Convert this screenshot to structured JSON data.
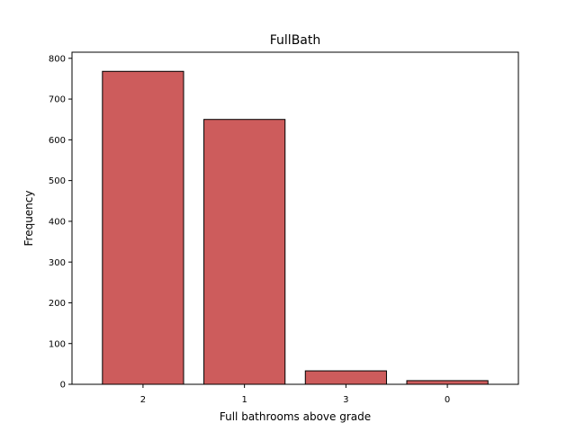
{
  "chart_data": {
    "type": "bar",
    "title": "FullBath",
    "xlabel": "Full bathrooms above grade",
    "ylabel": "Frequency",
    "categories": [
      "2",
      "1",
      "3",
      "0"
    ],
    "values": [
      768,
      650,
      33,
      9
    ],
    "ylim": [
      0,
      815
    ],
    "yticks": [
      0,
      100,
      200,
      300,
      400,
      500,
      600,
      700,
      800
    ],
    "grid": false,
    "legend": "none",
    "colors": {
      "bar_fill": "#cd5c5c",
      "bar_edge": "#000000",
      "axes": "#000000",
      "background": "#ffffff"
    }
  }
}
